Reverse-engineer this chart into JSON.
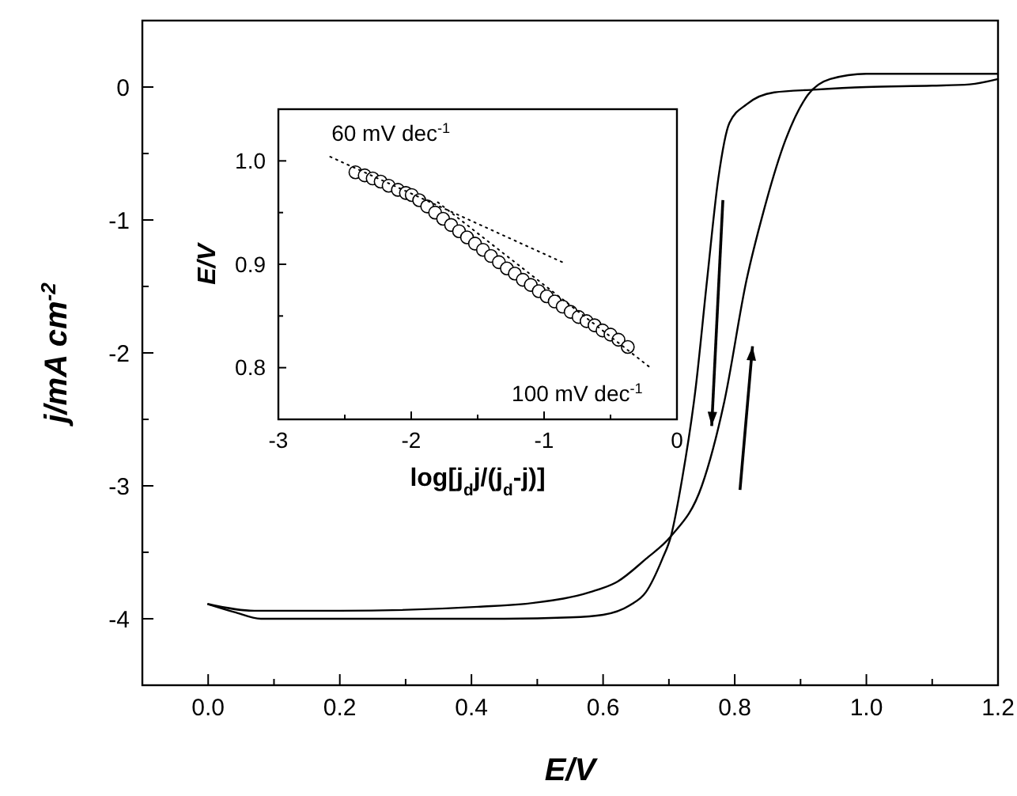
{
  "chart_data": [
    {
      "type": "line",
      "xlabel": "E/V",
      "ylabel": "j/mA cm$^{-2}$",
      "xlim": [
        -0.1,
        1.2
      ],
      "ylim": [
        -4.5,
        0.5
      ],
      "xticks": [
        {
          "value": 0,
          "label": "0.0"
        },
        {
          "value": 0.1,
          "label": null
        },
        {
          "value": 0.2,
          "label": "0.2"
        },
        {
          "value": 0.3,
          "label": null
        },
        {
          "value": 0.4,
          "label": "0.4"
        },
        {
          "value": 0.5,
          "label": null
        },
        {
          "value": 0.6,
          "label": "0.6"
        },
        {
          "value": 0.7,
          "label": null
        },
        {
          "value": 0.8,
          "label": "0.8"
        },
        {
          "value": 0.9,
          "label": null
        },
        {
          "value": 1.0,
          "label": "1.0"
        },
        {
          "value": 1.1,
          "label": null
        },
        {
          "value": 1.2,
          "label": "1.2"
        }
      ],
      "yticks": [
        {
          "value": -4,
          "label": "-4"
        },
        {
          "value": -3.5,
          "label": null
        },
        {
          "value": -3,
          "label": "-3"
        },
        {
          "value": -2.5,
          "label": null
        },
        {
          "value": -2,
          "label": "-2"
        },
        {
          "value": -1.5,
          "label": null
        },
        {
          "value": -1,
          "label": "-1"
        },
        {
          "value": -0.5,
          "label": null
        },
        {
          "value": 0,
          "label": "0"
        }
      ],
      "grid": false,
      "line_style": "solid",
      "series": [
        {
          "color": "#000000",
          "x": [
            0,
            0.04,
            0.08,
            0.15,
            0.3,
            0.45,
            0.55,
            0.6,
            0.64,
            0.665,
            0.69,
            0.703,
            0.72,
            0.74,
            0.758,
            0.775,
            0.792,
            0.818,
            0.86,
            0.92,
            1.0,
            1.1,
            1.157,
            1.2
          ],
          "values": [
            -3.89,
            -3.95,
            -4.0,
            -4.0,
            -4.0,
            -4.0,
            -3.99,
            -3.97,
            -3.9,
            -3.8,
            -3.55,
            -3.38,
            -2.95,
            -2.29,
            -1.45,
            -0.69,
            -0.27,
            -0.13,
            -0.04,
            -0.02,
            0.0,
            0.01,
            0.02,
            0.06
          ]
        },
        {
          "color": "#000000",
          "x": [
            0,
            0.07,
            0.2,
            0.41,
            0.495,
            0.58,
            0.622,
            0.665,
            0.703,
            0.75,
            0.784,
            0.818,
            0.843,
            0.877,
            0.911,
            0.945,
            1.0,
            1.09,
            1.2
          ],
          "values": [
            -3.89,
            -3.94,
            -3.94,
            -3.91,
            -3.88,
            -3.8,
            -3.72,
            -3.55,
            -3.38,
            -3.0,
            -2.37,
            -1.45,
            -0.95,
            -0.4,
            -0.06,
            0.06,
            0.1,
            0.1,
            0.1
          ]
        }
      ]
    },
    {
      "type": "scatter",
      "xlabel": "log[j$_{d}$j/(j$_{d}$-j)]",
      "ylabel": "E/V",
      "xlim": [
        -3,
        0
      ],
      "ylim": [
        0.75,
        1.05
      ],
      "xticks": [
        -3,
        {
          "value": -2.5,
          "label": null
        },
        -2,
        {
          "value": -1.5,
          "label": null
        },
        -1,
        {
          "value": -0.5,
          "label": null
        },
        0
      ],
      "yticks": [
        {
          "value": 0.8,
          "label": "0.8"
        },
        {
          "value": 0.85,
          "label": null
        },
        {
          "value": 0.9,
          "label": "0.9"
        },
        {
          "value": 0.95,
          "label": null
        },
        {
          "value": 1.0,
          "label": "1.0"
        }
      ],
      "grid": false,
      "annotations": [
        {
          "text": "60 mV dec$^{-1}$",
          "x": -2.6,
          "y": 1.004
        },
        {
          "text": "100 mV dec$^{-1}$",
          "x": -0.21,
          "y": 0.801
        }
      ],
      "series": [
        {
          "color": "#000000",
          "marker": "circle",
          "x": [
            -2.42,
            -2.35,
            -2.29,
            -2.23,
            -2.17,
            -2.1,
            -2.04,
            -1.996,
            -1.94,
            -1.88,
            -1.82,
            -1.76,
            -1.7,
            -1.64,
            -1.58,
            -1.52,
            -1.46,
            -1.4,
            -1.34,
            -1.28,
            -1.22,
            -1.16,
            -1.1,
            -1.04,
            -0.98,
            -0.92,
            -0.86,
            -0.8,
            -0.74,
            -0.68,
            -0.62,
            -0.56,
            -0.5,
            -0.44,
            -0.37
          ],
          "values": [
            0.989,
            0.986,
            0.983,
            0.98,
            0.976,
            0.972,
            0.969,
            0.967,
            0.962,
            0.956,
            0.95,
            0.944,
            0.938,
            0.932,
            0.926,
            0.92,
            0.914,
            0.908,
            0.902,
            0.896,
            0.891,
            0.885,
            0.88,
            0.874,
            0.869,
            0.864,
            0.859,
            0.854,
            0.849,
            0.845,
            0.841,
            0.836,
            0.832,
            0.827,
            0.82
          ]
        },
        {
          "type": "line",
          "color": "#000000",
          "line_style": "dotted",
          "x": [
            -2.61,
            -0.845
          ],
          "values": [
            1.004,
            0.901
          ]
        },
        {
          "type": "line",
          "color": "#000000",
          "line_style": "dotted",
          "x": [
            -1.8,
            -0.21
          ],
          "values": [
            0.96,
            0.801
          ]
        }
      ]
    }
  ]
}
